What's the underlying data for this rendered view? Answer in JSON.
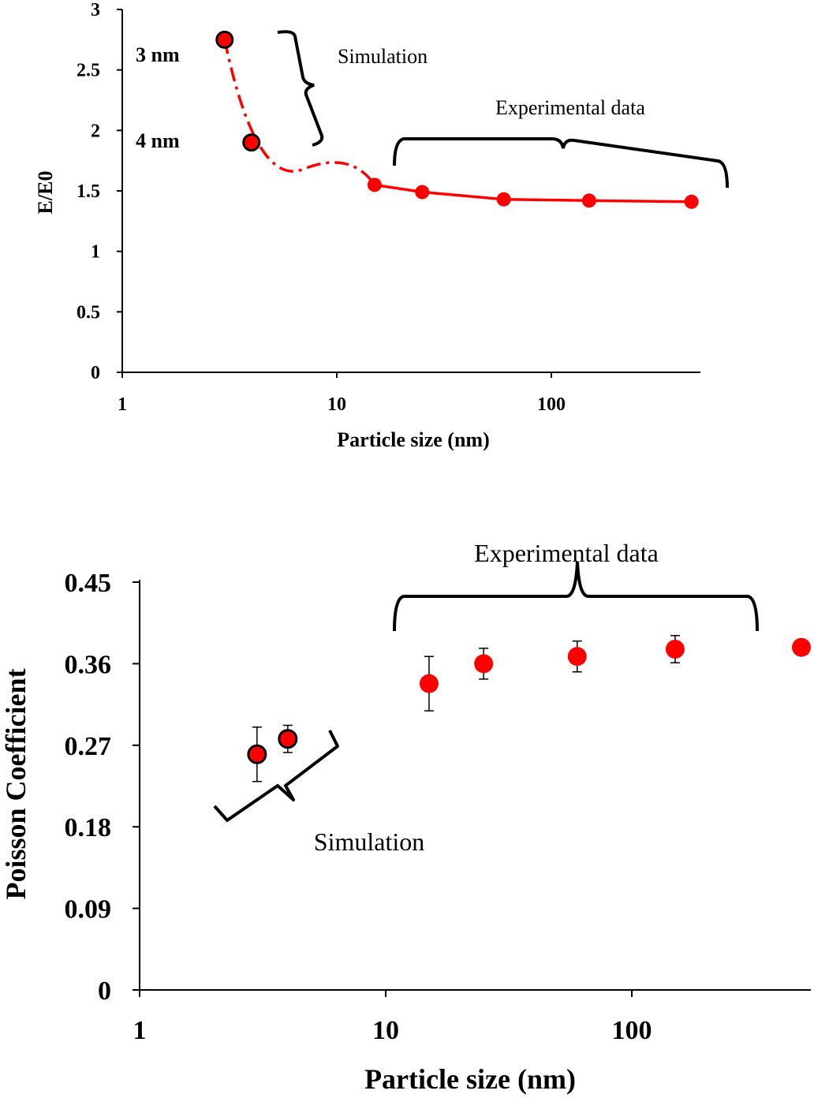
{
  "chart_data": [
    {
      "type": "line",
      "title": "",
      "xlabel": "Particle size (nm)",
      "ylabel": "E/E0",
      "x_scale": "log",
      "xlim": [
        1,
        500
      ],
      "ylim": [
        0,
        3
      ],
      "x_ticks": [
        "1",
        "10",
        "100"
      ],
      "y_ticks": [
        "0",
        "0.5",
        "1",
        "1.5",
        "2",
        "2.5",
        "3"
      ],
      "series": [
        {
          "name": "Simulation",
          "style": "dash-dot",
          "x": [
            3,
            4
          ],
          "y": [
            2.75,
            1.9
          ]
        },
        {
          "name": "Experimental data",
          "style": "solid",
          "x": [
            15,
            25,
            60,
            150,
            450
          ],
          "y": [
            1.55,
            1.49,
            1.43,
            1.42,
            1.41
          ]
        }
      ],
      "annotations": [
        "3 nm",
        "4 nm",
        "Simulation",
        "Experimental data"
      ],
      "colors": {
        "points": "#ff0000",
        "line": "#ff0000",
        "axes": "#000000"
      }
    },
    {
      "type": "scatter",
      "title": "",
      "xlabel": "Particle size (nm)",
      "ylabel": "Poisson Coefficient",
      "x_scale": "log",
      "xlim": [
        1,
        500
      ],
      "ylim": [
        0,
        0.45
      ],
      "x_ticks": [
        "1",
        "10",
        "100"
      ],
      "y_ticks": [
        "0",
        "0.09",
        "0.18",
        "0.27",
        "0.36",
        "0.45"
      ],
      "series": [
        {
          "name": "Simulation",
          "x": [
            3,
            4
          ],
          "y": [
            0.26,
            0.277
          ],
          "err": [
            0.03,
            0.015
          ]
        },
        {
          "name": "Experimental data",
          "x": [
            15,
            25,
            60,
            150,
            500
          ],
          "y": [
            0.338,
            0.36,
            0.368,
            0.376,
            0.378
          ],
          "err": [
            0.03,
            0.017,
            0.017,
            0.015,
            0
          ]
        }
      ],
      "annotations": [
        "Experimental data",
        "Simulation"
      ],
      "colors": {
        "points": "#ff0000",
        "axes": "#000000"
      }
    }
  ]
}
